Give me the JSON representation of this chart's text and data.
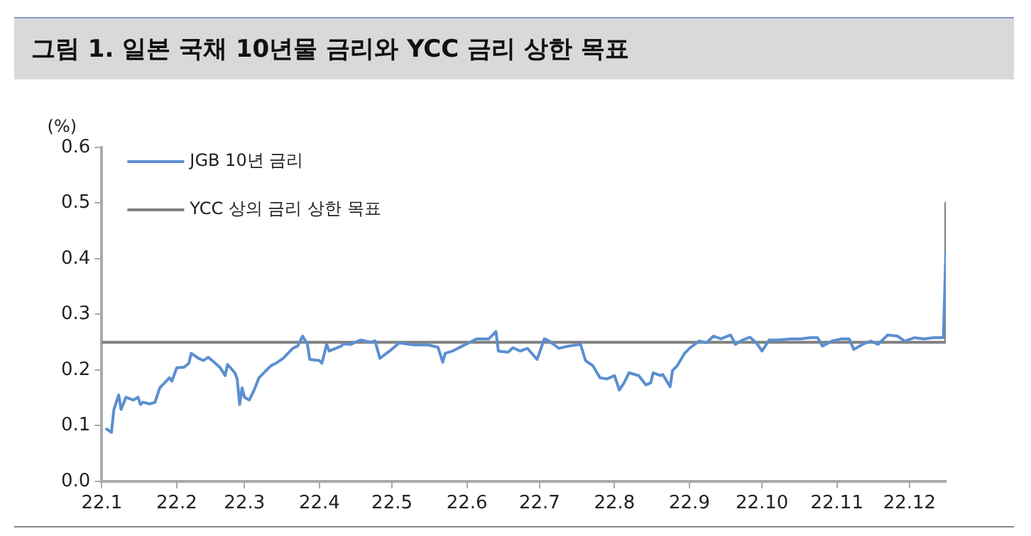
{
  "chart_data": {
    "type": "line",
    "title": "그림 1. 일본 국채 10년물 금리와 YCC 금리 상한 목표",
    "ylabel": "(%)",
    "legend": "top left",
    "grid": false,
    "marker": "none",
    "line_style": "solid",
    "xlim": [
      "--01-01",
      "--12-16"
    ],
    "xticks": [
      {
        "value": "--01-01",
        "label": "22.1"
      },
      {
        "value": "--02-01",
        "label": "22.2"
      },
      {
        "value": "--03-01",
        "label": "22.3"
      },
      {
        "value": "--04-01",
        "label": "22.4"
      },
      {
        "value": "--05-01",
        "label": "22.5"
      },
      {
        "value": "--06-01",
        "label": "22.6"
      },
      {
        "value": "--07-01",
        "label": "22.7"
      },
      {
        "value": "--08-01",
        "label": "22.8"
      },
      {
        "value": "--09-01",
        "label": "22.9"
      },
      {
        "value": "--10-01",
        "label": "22.10"
      },
      {
        "value": "--11-01",
        "label": "22.11"
      },
      {
        "value": "--12-01",
        "label": "22.12"
      }
    ],
    "ylim": [
      0,
      0.6
    ],
    "yticks": [
      {
        "value": 0,
        "label": "0.0"
      },
      {
        "value": 0.1,
        "label": "0.1"
      },
      {
        "value": 0.2,
        "label": "0.2"
      },
      {
        "value": 0.3,
        "label": "0.3"
      },
      {
        "value": 0.4,
        "label": "0.4"
      },
      {
        "value": 0.5,
        "label": "0.5"
      },
      {
        "value": 0.6,
        "label": "0.6"
      }
    ],
    "series": [
      {
        "name": "JGB 10년 금리",
        "color": "#5b8fd0",
        "x": [
          "--01-03",
          "--01-05",
          "--01-06",
          "--01-07",
          "--01-08",
          "--01-09",
          "--01-11",
          "--01-14",
          "--01-16",
          "--01-17",
          "--01-18",
          "--01-21",
          "--01-23",
          "--01-25",
          "--01-29",
          "--01-30",
          "--02-01",
          "--02-04",
          "--02-06",
          "--02-07",
          "--02-10",
          "--02-12",
          "--02-14",
          "--02-17",
          "--02-19",
          "--02-21",
          "--02-22",
          "--02-25",
          "--02-26",
          "--02-27",
          "--02-28",
          "--03-01",
          "--03-03",
          "--03-05",
          "--03-07",
          "--03-09",
          "--03-12",
          "--03-14",
          "--03-17",
          "--03-21",
          "--03-23",
          "--03-25",
          "--03-27",
          "--03-28",
          "--04-01",
          "--04-02",
          "--04-04",
          "--04-05",
          "--04-10",
          "--04-11",
          "--04-14",
          "--04-18",
          "--04-22",
          "--04-24",
          "--04-26",
          "--04-30",
          "--05-04",
          "--05-07",
          "--05-10",
          "--05-16",
          "--05-20",
          "--05-22",
          "--05-23",
          "--05-26",
          "--05-30",
          "--06-01",
          "--06-05",
          "--06-10",
          "--06-13",
          "--06-14",
          "--06-18",
          "--06-20",
          "--06-23",
          "--06-26",
          "--06-30",
          "--07-03",
          "--07-05",
          "--07-09",
          "--07-13",
          "--07-18",
          "--07-20",
          "--07-23",
          "--07-26",
          "--07-29",
          "--08-01",
          "--08-03",
          "--08-05",
          "--08-07",
          "--08-11",
          "--08-14",
          "--08-16",
          "--08-17",
          "--08-20",
          "--08-21",
          "--08-24",
          "--08-25",
          "--08-27",
          "--08-30",
          "--09-01",
          "--09-05",
          "--09-08",
          "--09-11",
          "--09-14",
          "--09-18",
          "--09-20",
          "--09-23",
          "--09-26",
          "--09-29",
          "--10-01",
          "--10-04",
          "--10-08",
          "--10-13",
          "--10-17",
          "--10-21",
          "--10-24",
          "--10-26",
          "--10-30",
          "--11-03",
          "--11-06",
          "--11-08",
          "--11-12",
          "--11-15",
          "--11-18",
          "--11-22",
          "--11-26",
          "--11-29",
          "--12-03",
          "--12-07",
          "--12-11",
          "--12-15",
          "--12-16"
        ],
        "values": [
          0.094,
          0.088,
          0.129,
          0.142,
          0.155,
          0.129,
          0.151,
          0.146,
          0.151,
          0.138,
          0.142,
          0.139,
          0.142,
          0.168,
          0.186,
          0.18,
          0.204,
          0.205,
          0.212,
          0.23,
          0.221,
          0.217,
          0.223,
          0.212,
          0.204,
          0.19,
          0.21,
          0.195,
          0.184,
          0.138,
          0.168,
          0.151,
          0.146,
          0.164,
          0.186,
          0.195,
          0.208,
          0.212,
          0.221,
          0.239,
          0.243,
          0.261,
          0.247,
          0.219,
          0.217,
          0.212,
          0.246,
          0.234,
          0.243,
          0.247,
          0.246,
          0.254,
          0.25,
          0.252,
          0.221,
          0.234,
          0.249,
          0.247,
          0.245,
          0.245,
          0.241,
          0.214,
          0.23,
          0.234,
          0.243,
          0.247,
          0.256,
          0.256,
          0.269,
          0.234,
          0.232,
          0.24,
          0.234,
          0.239,
          0.219,
          0.256,
          0.252,
          0.239,
          0.243,
          0.246,
          0.217,
          0.208,
          0.186,
          0.184,
          0.19,
          0.164,
          0.177,
          0.195,
          0.19,
          0.173,
          0.177,
          0.195,
          0.19,
          0.192,
          0.17,
          0.199,
          0.208,
          0.23,
          0.239,
          0.252,
          0.249,
          0.261,
          0.256,
          0.263,
          0.246,
          0.254,
          0.259,
          0.247,
          0.234,
          0.254,
          0.254,
          0.256,
          0.256,
          0.258,
          0.258,
          0.243,
          0.252,
          0.256,
          0.256,
          0.237,
          0.247,
          0.252,
          0.246,
          0.263,
          0.261,
          0.252,
          0.258,
          0.256,
          0.258,
          0.258,
          0.41
        ]
      },
      {
        "name": "YCC 상의 금리 상한 목표",
        "color": "#808080",
        "x": [
          "--01-01",
          "--12-16",
          "--12-16"
        ],
        "values": [
          0.25,
          0.25,
          0.5
        ]
      }
    ]
  }
}
